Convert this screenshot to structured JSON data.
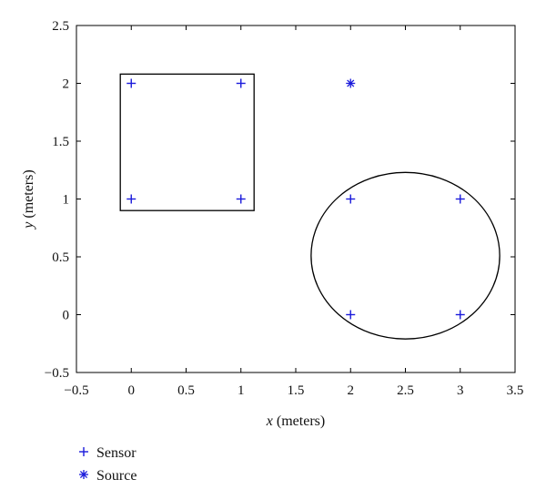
{
  "chart_data": {
    "type": "scatter",
    "title": "",
    "xlabel_var": "x",
    "xlabel_unit": " (meters)",
    "ylabel_var": "y",
    "ylabel_unit": " (meters)",
    "xlim": [
      -0.5,
      3.5
    ],
    "ylim": [
      -0.5,
      2.5
    ],
    "xticks": [
      "−0.5",
      "0",
      "0.5",
      "1",
      "1.5",
      "2",
      "2.5",
      "3",
      "3.5"
    ],
    "yticks": [
      "−0.5",
      "0",
      "0.5",
      "1",
      "1.5",
      "2",
      "2.5"
    ],
    "grid": false,
    "legend_placement": "below",
    "series": [
      {
        "name": "Sensor",
        "marker": "plus",
        "color": "#1a1adb",
        "points": [
          [
            0,
            2
          ],
          [
            1,
            2
          ],
          [
            0,
            1
          ],
          [
            1,
            1
          ],
          [
            2,
            1
          ],
          [
            3,
            1
          ],
          [
            2,
            0
          ],
          [
            3,
            0
          ]
        ]
      },
      {
        "name": "Source",
        "marker": "asterisk",
        "color": "#1a1adb",
        "points": [
          [
            2,
            2
          ]
        ]
      }
    ],
    "shapes": [
      {
        "kind": "rectangle",
        "x0": -0.1,
        "y0": 0.9,
        "x1": 1.12,
        "y1": 2.08,
        "color": "#000000"
      },
      {
        "kind": "ellipse",
        "cx": 2.5,
        "cy": 0.51,
        "rx": 0.86,
        "ry": 0.72,
        "color": "#000000"
      }
    ]
  }
}
